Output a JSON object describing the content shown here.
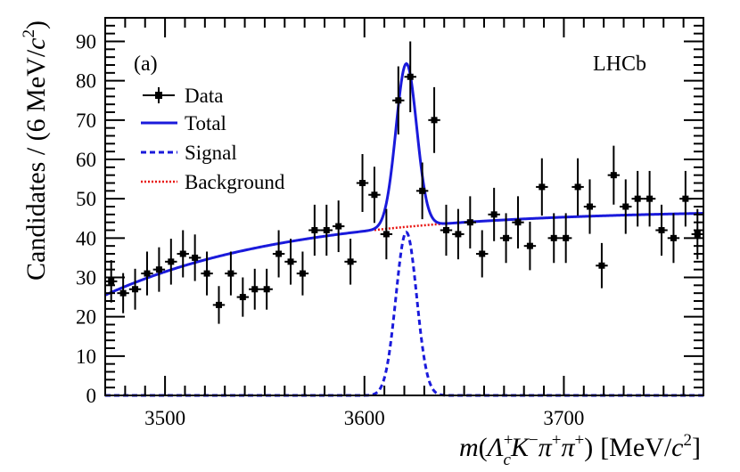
{
  "chart_data": {
    "type": "scatter",
    "panel_label": "(a)",
    "experiment_label": "LHCb",
    "xlabel_parts": {
      "m": "m",
      "open": "(",
      "lambda": "Λ",
      "lambda_sup": "+",
      "lambda_sub": "c",
      "kaon": "K",
      "kaon_sup": "−",
      "pion1": "π",
      "pion1_sup": "+",
      "pion2": "π",
      "pion2_sup": "+",
      "close": ")",
      "unit_open": "[MeV/",
      "unit_c": "c",
      "unit_pow": "2",
      "unit_close": "]"
    },
    "ylabel_parts": {
      "main": "Candidates / (6 MeV/",
      "c": "c",
      "pow": "2",
      "close": ")"
    },
    "xlim": [
      3470,
      3770
    ],
    "ylim": [
      0,
      96
    ],
    "x_tick_labels": [
      "3500",
      "3600",
      "3700"
    ],
    "x_ticks": [
      3500,
      3600,
      3700
    ],
    "y_tick_labels": [
      "0",
      "10",
      "20",
      "30",
      "40",
      "50",
      "60",
      "70",
      "80",
      "90"
    ],
    "y_ticks": [
      0,
      10,
      20,
      30,
      40,
      50,
      60,
      70,
      80,
      90
    ],
    "legend": [
      "Data",
      "Total",
      "Signal",
      "Background"
    ],
    "legend_position": "top-left",
    "colors": {
      "data": "#000000",
      "total": "#1a1adb",
      "signal": "#1a1adb",
      "background": "#e8130f"
    },
    "bin_width": 6,
    "data_points": [
      {
        "x": 3473,
        "y": 29
      },
      {
        "x": 3479,
        "y": 26
      },
      {
        "x": 3485,
        "y": 27
      },
      {
        "x": 3491,
        "y": 31
      },
      {
        "x": 3497,
        "y": 32
      },
      {
        "x": 3503,
        "y": 34
      },
      {
        "x": 3509,
        "y": 36
      },
      {
        "x": 3515,
        "y": 35
      },
      {
        "x": 3521,
        "y": 31
      },
      {
        "x": 3527,
        "y": 23
      },
      {
        "x": 3533,
        "y": 31
      },
      {
        "x": 3539,
        "y": 25
      },
      {
        "x": 3545,
        "y": 27
      },
      {
        "x": 3551,
        "y": 27
      },
      {
        "x": 3557,
        "y": 36
      },
      {
        "x": 3563,
        "y": 34
      },
      {
        "x": 3569,
        "y": 31
      },
      {
        "x": 3575,
        "y": 42
      },
      {
        "x": 3581,
        "y": 42
      },
      {
        "x": 3587,
        "y": 43
      },
      {
        "x": 3593,
        "y": 34
      },
      {
        "x": 3599,
        "y": 54
      },
      {
        "x": 3605,
        "y": 51
      },
      {
        "x": 3611,
        "y": 41
      },
      {
        "x": 3617,
        "y": 75
      },
      {
        "x": 3623,
        "y": 81
      },
      {
        "x": 3629,
        "y": 52
      },
      {
        "x": 3635,
        "y": 70
      },
      {
        "x": 3641,
        "y": 42
      },
      {
        "x": 3647,
        "y": 41
      },
      {
        "x": 3653,
        "y": 44
      },
      {
        "x": 3659,
        "y": 36
      },
      {
        "x": 3665,
        "y": 46
      },
      {
        "x": 3671,
        "y": 40
      },
      {
        "x": 3677,
        "y": 44
      },
      {
        "x": 3683,
        "y": 38
      },
      {
        "x": 3689,
        "y": 53
      },
      {
        "x": 3695,
        "y": 40
      },
      {
        "x": 3701,
        "y": 40
      },
      {
        "x": 3707,
        "y": 53
      },
      {
        "x": 3713,
        "y": 48
      },
      {
        "x": 3719,
        "y": 33
      },
      {
        "x": 3725,
        "y": 56
      },
      {
        "x": 3731,
        "y": 48
      },
      {
        "x": 3737,
        "y": 50
      },
      {
        "x": 3743,
        "y": 50
      },
      {
        "x": 3749,
        "y": 42
      },
      {
        "x": 3755,
        "y": 40
      },
      {
        "x": 3761,
        "y": 50
      },
      {
        "x": 3767,
        "y": 41
      }
    ],
    "fit_model": {
      "signal_peak_x": 3621,
      "signal_peak_y": 41.5,
      "signal_sigma": 5.2,
      "background_at_3470": 25.5,
      "background_at_3770": 46.3,
      "background_shape": "threshold-like, rising and flattening"
    }
  }
}
